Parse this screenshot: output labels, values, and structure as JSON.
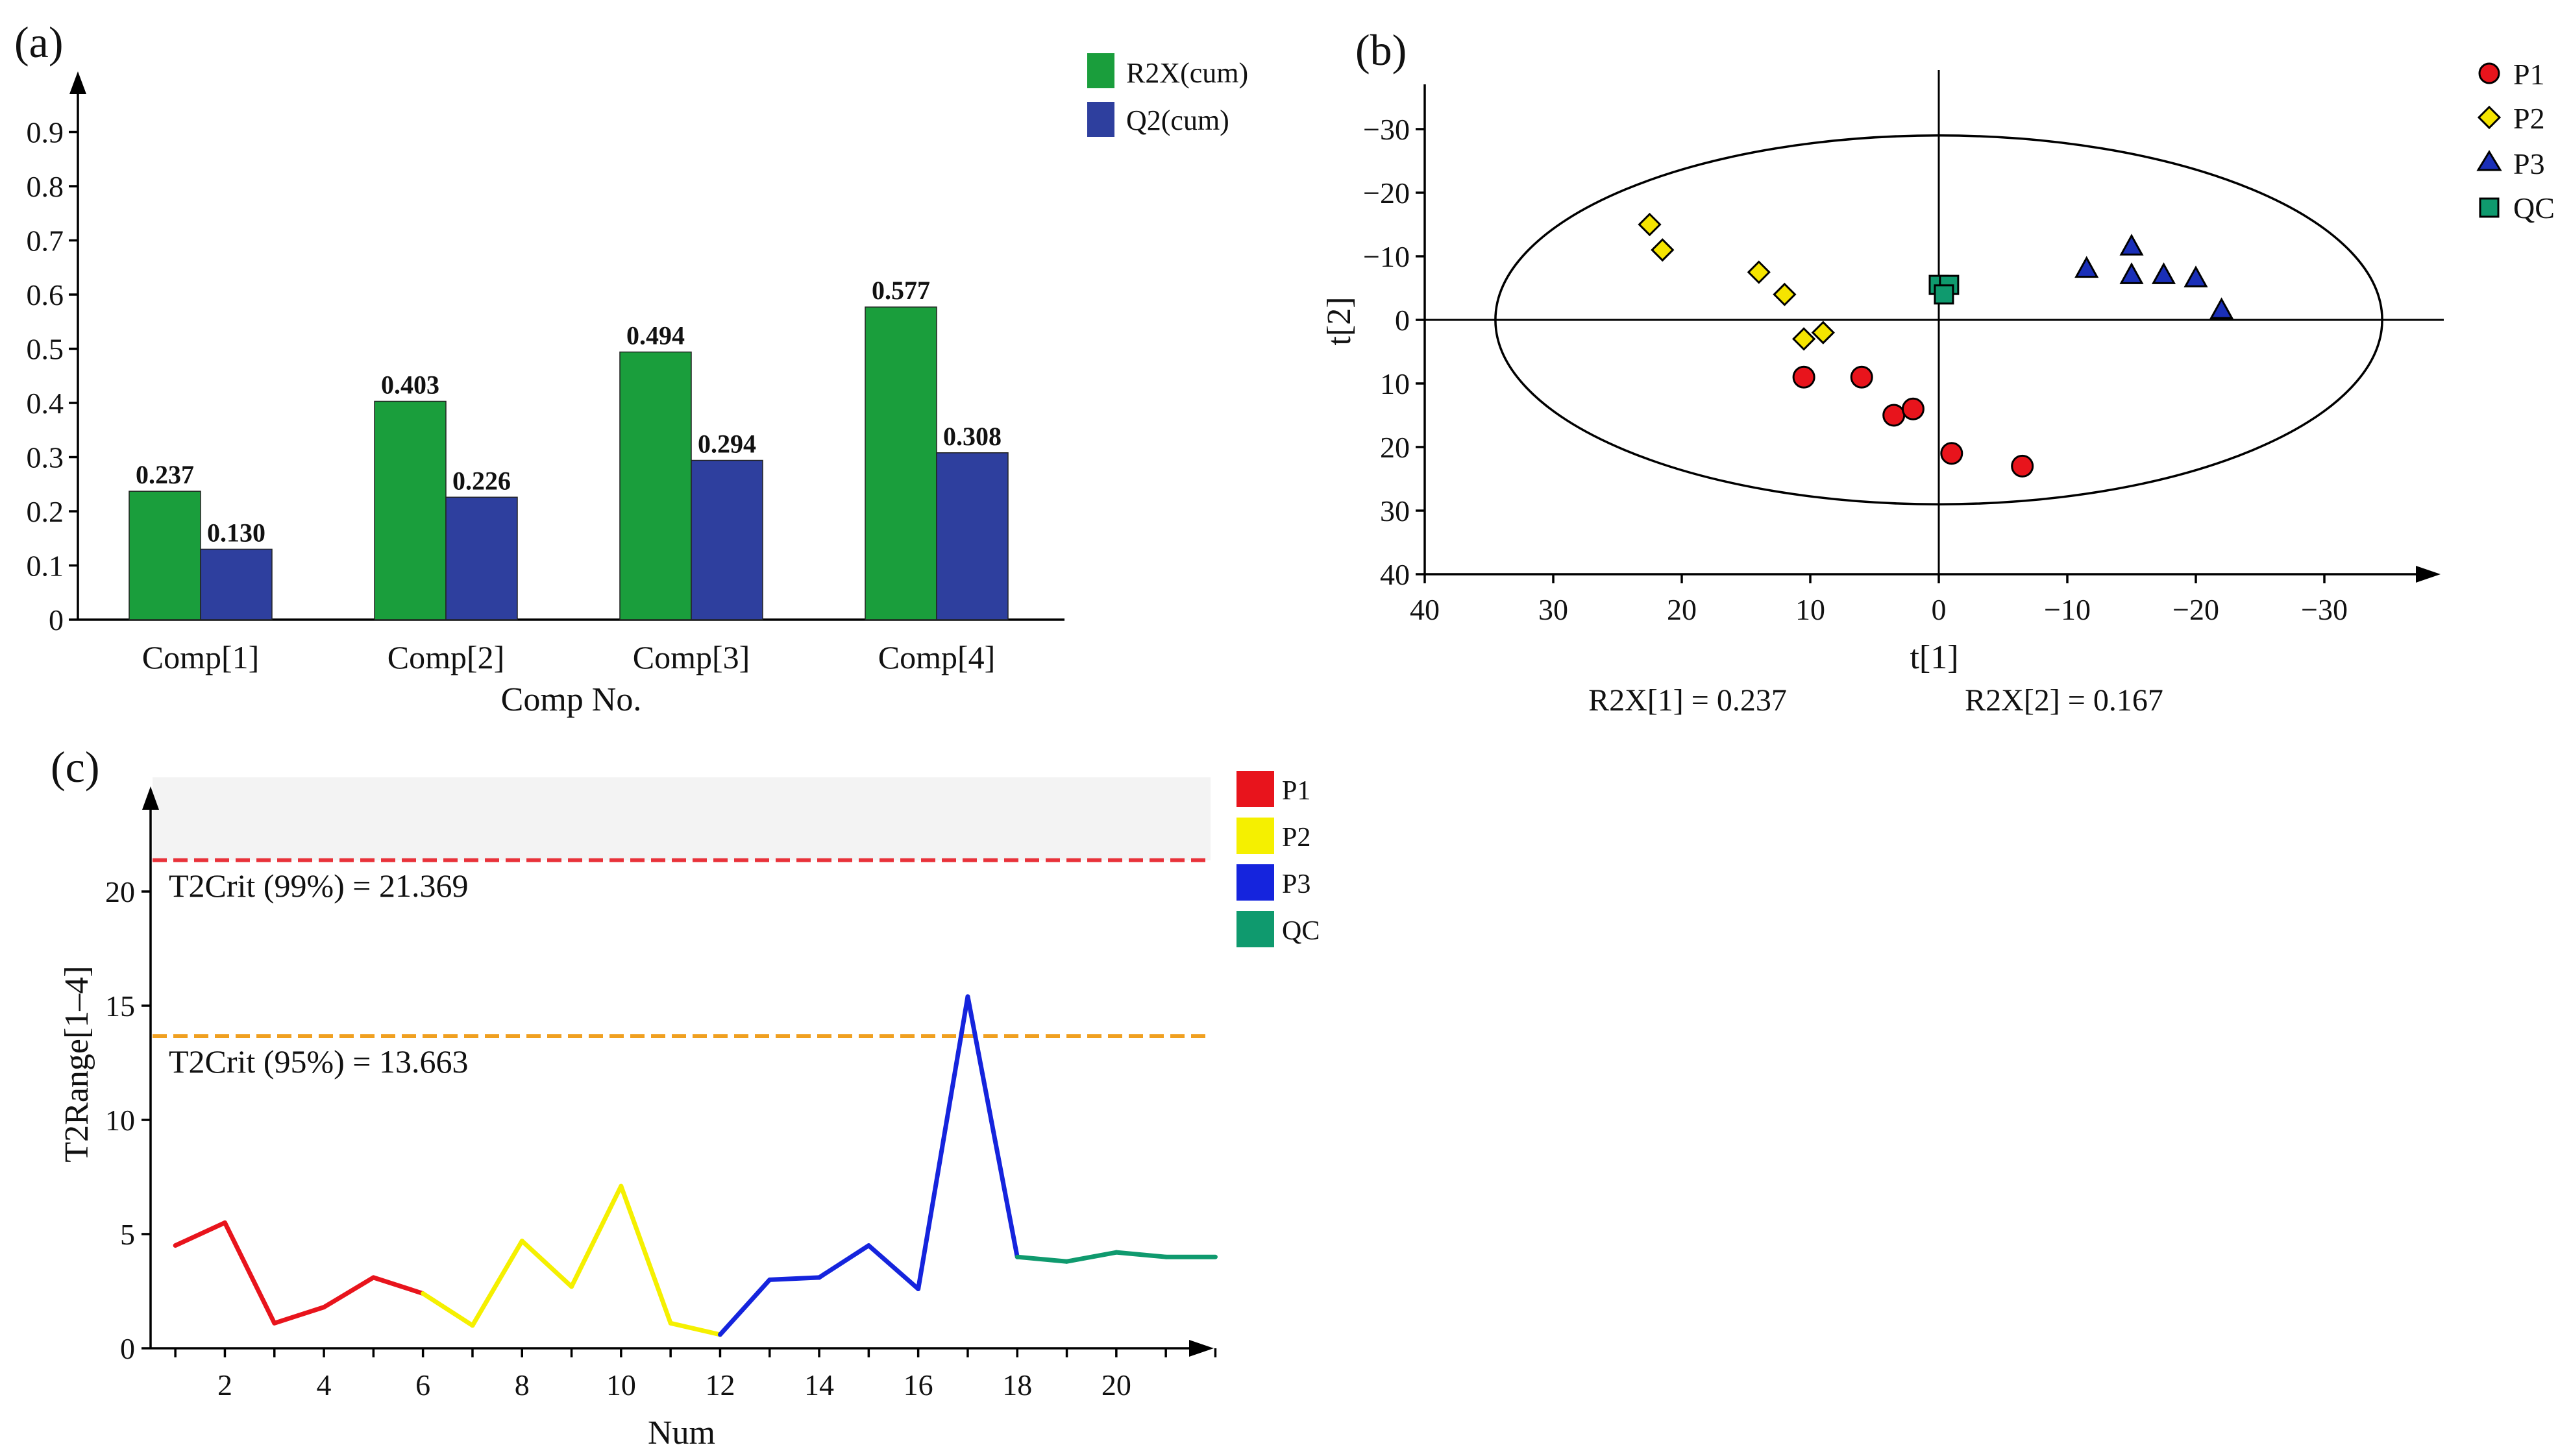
{
  "chart_data": [
    {
      "panel": "(a)",
      "type": "bar",
      "xlabel": "Comp No.",
      "ylabel": "",
      "ylim": [
        0,
        1
      ],
      "yticks": [
        "0",
        "0.1",
        "0.2",
        "0.3",
        "0.4",
        "0.5",
        "0.6",
        "0.7",
        "0.8",
        "0.9"
      ],
      "categories": [
        "Comp[1]",
        "Comp[2]",
        "Comp[3]",
        "Comp[4]"
      ],
      "series": [
        {
          "name": "R2X(cum)",
          "color": "#1a9e3c",
          "values": [
            0.237,
            0.403,
            0.494,
            0.577
          ],
          "labels": [
            "0.237",
            "0.403",
            "0.494",
            "0.577"
          ]
        },
        {
          "name": "Q2(cum)",
          "color": "#2e3f9e",
          "values": [
            0.13,
            0.226,
            0.294,
            0.308
          ],
          "labels": [
            "0.130",
            "0.226",
            "0.294",
            "0.308"
          ]
        }
      ],
      "legend_position": "top-right"
    },
    {
      "panel": "(b)",
      "type": "scatter",
      "xlabel": "t[1]",
      "ylabel": "t[2]",
      "xlim": [
        40,
        -38
      ],
      "ylim": [
        -40,
        40
      ],
      "xticks": [
        40,
        30,
        20,
        10,
        0,
        -10,
        -20,
        -30
      ],
      "xtick_labels": [
        "40",
        "30",
        "20",
        "10",
        "0",
        "−10",
        "−20",
        "−30"
      ],
      "yticks": [
        -30,
        -20,
        -10,
        0,
        10,
        20,
        30,
        40
      ],
      "ytick_labels": [
        "−30",
        "−20",
        "−10",
        "0",
        "10",
        "20",
        "30",
        "40"
      ],
      "ellipse": {
        "cx": 0,
        "cy": 0,
        "rx": 34.5,
        "ry": 29
      },
      "footnotes": [
        "R2X[1] = 0.237",
        "R2X[2] = 0.167"
      ],
      "series": [
        {
          "name": "P1",
          "marker": "circle",
          "color": "#e8141c",
          "points": [
            [
              10.5,
              9
            ],
            [
              6,
              9
            ],
            [
              3.5,
              15
            ],
            [
              2,
              14
            ],
            [
              -1,
              21
            ],
            [
              -6.5,
              23
            ]
          ]
        },
        {
          "name": "P2",
          "marker": "diamond",
          "color": "#f5e400",
          "points": [
            [
              22.5,
              -15
            ],
            [
              21.5,
              -11
            ],
            [
              14,
              -7.5
            ],
            [
              12,
              -4
            ],
            [
              10.5,
              3
            ],
            [
              9,
              2
            ]
          ]
        },
        {
          "name": "P3",
          "marker": "triangle",
          "color": "#1a2fb8",
          "points": [
            [
              -11.5,
              -8
            ],
            [
              -15,
              -11.5
            ],
            [
              -15,
              -7
            ],
            [
              -17.5,
              -7
            ],
            [
              -20,
              -6.5
            ],
            [
              -22,
              -1.5
            ]
          ]
        },
        {
          "name": "QC",
          "marker": "square",
          "color": "#0f9a6e",
          "points": [
            [
              0,
              -5.5
            ],
            [
              -0.8,
              -5.5
            ],
            [
              -0.4,
              -4
            ]
          ]
        }
      ],
      "legend_position": "top-right"
    },
    {
      "panel": "(c)",
      "type": "line",
      "xlabel": "Num",
      "ylabel": "T2Range[1–4]",
      "xlim": [
        0.5,
        22
      ],
      "ylim": [
        0,
        25
      ],
      "xticks": [
        2,
        4,
        6,
        8,
        10,
        12,
        14,
        16,
        18,
        20
      ],
      "yticks": [
        0,
        5,
        10,
        15,
        20
      ],
      "x": [
        1,
        2,
        3,
        4,
        5,
        6,
        7,
        8,
        9,
        10,
        11,
        12,
        13,
        14,
        15,
        16,
        17,
        18,
        19,
        20,
        21,
        22
      ],
      "values": [
        4.5,
        5.5,
        1.1,
        1.8,
        3.1,
        2.4,
        1.0,
        4.7,
        2.7,
        7.1,
        1.1,
        0.6,
        3.0,
        3.1,
        4.5,
        2.6,
        15.4,
        4.0,
        3.8,
        4.2,
        4.0,
        4.0
      ],
      "groups": [
        {
          "name": "P1",
          "color": "#e8141c",
          "from": 1,
          "to": 6
        },
        {
          "name": "P2",
          "color": "#f5f000",
          "from": 7,
          "to": 12
        },
        {
          "name": "P3",
          "color": "#1524dd",
          "from": 13,
          "to": 18
        },
        {
          "name": "QC",
          "color": "#0f9a6e",
          "from": 19,
          "to": 22
        }
      ],
      "thresholds": [
        {
          "label": "T2Crit (99%) = 21.369",
          "value": 21.369,
          "color": "#e8323a"
        },
        {
          "label": "T2Crit (95%) = 13.663",
          "value": 13.663,
          "color": "#f0a020"
        }
      ],
      "shaded_region": [
        21.369,
        25
      ],
      "legend_position": "top-right"
    }
  ]
}
